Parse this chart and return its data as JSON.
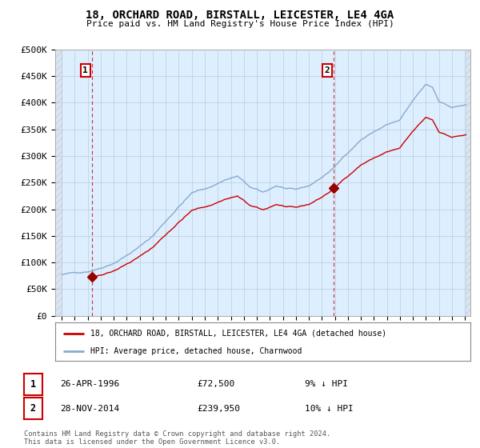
{
  "title": "18, ORCHARD ROAD, BIRSTALL, LEICESTER, LE4 4GA",
  "subtitle": "Price paid vs. HM Land Registry's House Price Index (HPI)",
  "background_color": "#ffffff",
  "plot_bg_color": "#ddeeff",
  "grid_color": "#bbccdd",
  "sale1_date": 1996.32,
  "sale1_price": 72500,
  "sale2_date": 2014.91,
  "sale2_price": 239950,
  "sale_marker_color": "#990000",
  "sale_line_color": "#cc0000",
  "hpi_line_color": "#88aacc",
  "legend_sale_label": "18, ORCHARD ROAD, BIRSTALL, LEICESTER, LE4 4GA (detached house)",
  "legend_hpi_label": "HPI: Average price, detached house, Charnwood",
  "footer_text": "Contains HM Land Registry data © Crown copyright and database right 2024.\nThis data is licensed under the Open Government Licence v3.0.",
  "table_row1": [
    "1",
    "26-APR-1996",
    "£72,500",
    "9% ↓ HPI"
  ],
  "table_row2": [
    "2",
    "28-NOV-2014",
    "£239,950",
    "10% ↓ HPI"
  ],
  "yticks": [
    0,
    50000,
    100000,
    150000,
    200000,
    250000,
    300000,
    350000,
    400000,
    450000,
    500000
  ],
  "ytick_labels": [
    "£0",
    "£50K",
    "£100K",
    "£150K",
    "£200K",
    "£250K",
    "£300K",
    "£350K",
    "£400K",
    "£450K",
    "£500K"
  ]
}
